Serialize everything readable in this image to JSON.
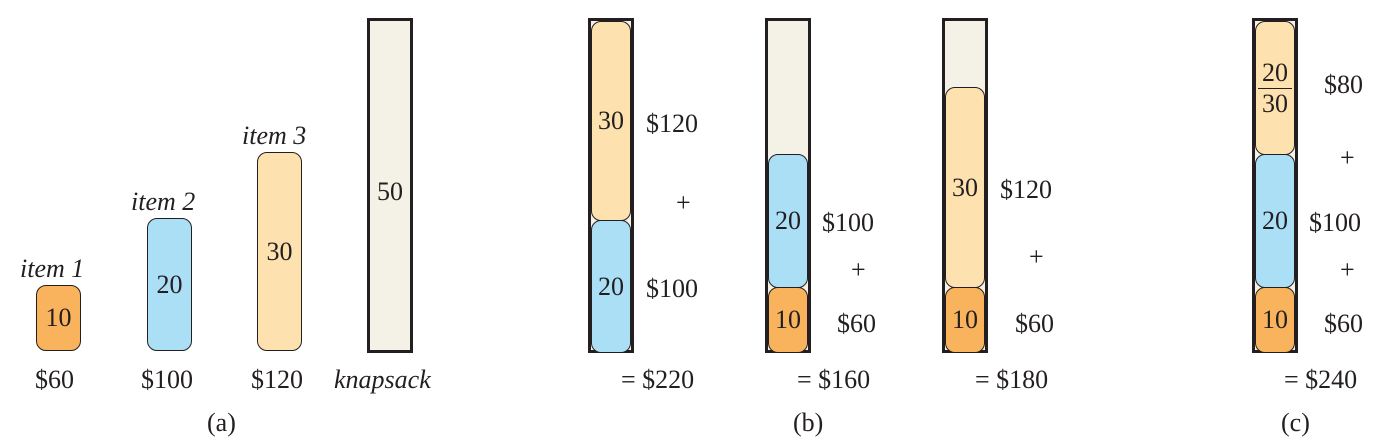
{
  "part_a": {
    "items": [
      {
        "name": "item 1",
        "weight": "10",
        "value": "$60"
      },
      {
        "name": "item 2",
        "weight": "20",
        "value": "$100"
      },
      {
        "name": "item 3",
        "weight": "30",
        "value": "$120"
      }
    ],
    "knapsack": {
      "capacity": "50",
      "label": "knapsack"
    },
    "caption": "(a)"
  },
  "part_b": {
    "solutions": [
      {
        "blocks": [
          "20",
          "30"
        ],
        "values": [
          "$100",
          "$120"
        ],
        "plus": "+",
        "total": "= $220"
      },
      {
        "blocks": [
          "10",
          "20"
        ],
        "values": [
          "$60",
          "$100"
        ],
        "plus": "+",
        "total": "= $160"
      },
      {
        "blocks": [
          "10",
          "30"
        ],
        "values": [
          "$60",
          "$120"
        ],
        "plus": "+",
        "total": "= $180"
      }
    ],
    "caption": "(b)"
  },
  "part_c": {
    "blocks": [
      "10",
      "20"
    ],
    "fraction": {
      "numerator": "20",
      "denominator": "30"
    },
    "values": [
      "$60",
      "$100",
      "$80"
    ],
    "plus": [
      "+",
      "+"
    ],
    "total": "= $240",
    "caption": "(c)"
  },
  "colors": {
    "item1": "#f9b35d",
    "item2": "#abdff6",
    "item3": "#fde2b0",
    "knapsack": "#f4f1e6",
    "stroke": "#231f20"
  }
}
